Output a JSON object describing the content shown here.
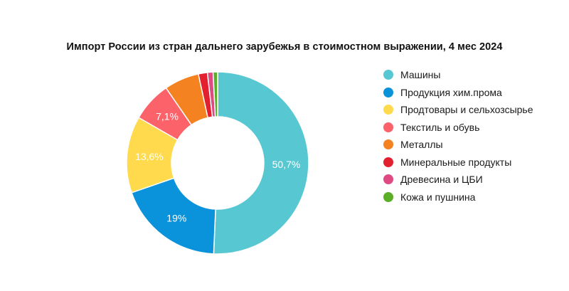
{
  "chart_data": {
    "type": "pie",
    "title": "Импорт России из стран дальнего зарубежья в стоимостном выражении, 4 мес 2024",
    "categories": [
      "Машины",
      "Продукция хим.прома",
      "Продтовары и сельхозсырье",
      "Текстиль и обувь",
      "Металлы",
      "Минеральные продукты",
      "Древесина и ЦБИ",
      "Кожа и пушнина"
    ],
    "values": [
      50.7,
      19,
      13.6,
      7.1,
      6.2,
      1.6,
      1.0,
      0.8
    ],
    "data_labels": [
      "50,7%",
      "19%",
      "13,6%",
      "7,1%",
      "",
      "",
      "",
      ""
    ],
    "colors": [
      "#57C7D1",
      "#0A93DB",
      "#FEDA4C",
      "#FB6269",
      "#F48220",
      "#E3202F",
      "#DF4A82",
      "#5BAE27"
    ],
    "legend_position": "right",
    "donut": true
  }
}
